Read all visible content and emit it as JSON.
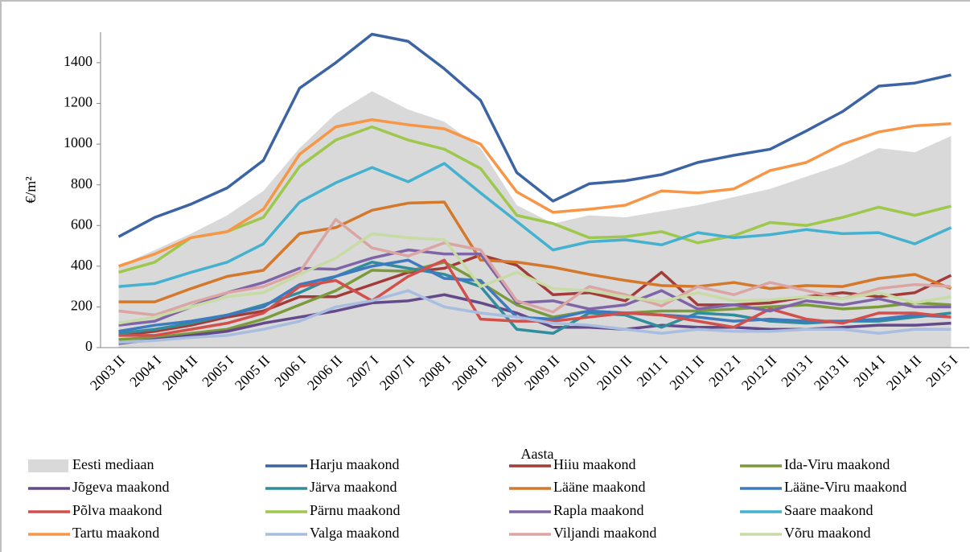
{
  "chart_data": {
    "type": "line",
    "ylabel": "€/m²",
    "xlabel": "Aasta",
    "categories": [
      "2003 II",
      "2004 I",
      "2004 II",
      "2005 I",
      "2005 II",
      "2006 I",
      "2006 II",
      "2007 I",
      "2007 II",
      "2008 I",
      "2008 II",
      "2009 I",
      "2009 II",
      "2010 I",
      "2010 II",
      "2011 I",
      "2011 II",
      "2012 I",
      "2012 II",
      "2013 I",
      "2013 II",
      "2014 I",
      "2014 II",
      "2015 I"
    ],
    "ylim": [
      0,
      1550
    ],
    "yticks": [
      0,
      200,
      400,
      600,
      800,
      1000,
      1200,
      1400
    ],
    "series": [
      {
        "name": "Eesti mediaan",
        "color": "#d9d9d9",
        "area": true,
        "values": [
          400,
          480,
          560,
          650,
          770,
          980,
          1150,
          1260,
          1170,
          1110,
          980,
          700,
          610,
          650,
          640,
          670,
          700,
          740,
          780,
          840,
          900,
          980,
          960,
          1040
        ]
      },
      {
        "name": "Harju maakond",
        "color": "#3c64a4",
        "values": [
          545,
          640,
          705,
          785,
          920,
          1275,
          1400,
          1540,
          1505,
          1370,
          1215,
          860,
          720,
          805,
          820,
          850,
          910,
          945,
          975,
          1065,
          1160,
          1285,
          1300,
          1340
        ]
      },
      {
        "name": "Hiiu maakond",
        "color": "#a33c39",
        "values": [
          60,
          80,
          110,
          150,
          180,
          250,
          250,
          310,
          370,
          390,
          455,
          405,
          260,
          270,
          230,
          370,
          210,
          210,
          220,
          250,
          270,
          250,
          270,
          355
        ]
      },
      {
        "name": "Ida-Viru maakond",
        "color": "#7b9a3c",
        "values": [
          40,
          50,
          70,
          90,
          140,
          210,
          280,
          380,
          375,
          420,
          320,
          210,
          150,
          180,
          170,
          180,
          180,
          190,
          200,
          210,
          190,
          200,
          220,
          210
        ]
      },
      {
        "name": "Jõgeva maakond",
        "color": "#644a8a",
        "values": [
          20,
          40,
          60,
          80,
          120,
          150,
          180,
          220,
          230,
          260,
          220,
          170,
          100,
          100,
          90,
          110,
          100,
          100,
          90,
          90,
          100,
          110,
          110,
          120
        ]
      },
      {
        "name": "Järva maakond",
        "color": "#2f8d9c",
        "values": [
          70,
          90,
          120,
          160,
          210,
          270,
          350,
          420,
          390,
          360,
          300,
          90,
          70,
          170,
          160,
          100,
          170,
          160,
          130,
          120,
          130,
          130,
          150,
          170
        ]
      },
      {
        "name": "Lääne maakond",
        "color": "#d4782c",
        "values": [
          225,
          225,
          290,
          350,
          380,
          560,
          590,
          675,
          710,
          715,
          430,
          420,
          395,
          360,
          330,
          305,
          300,
          320,
          290,
          305,
          300,
          340,
          360,
          290
        ]
      },
      {
        "name": "Lääne-Viru maakond",
        "color": "#3e7ac0",
        "values": [
          80,
          110,
          130,
          160,
          200,
          310,
          350,
          400,
          430,
          340,
          330,
          150,
          140,
          180,
          170,
          160,
          150,
          130,
          140,
          130,
          130,
          140,
          160,
          150
        ]
      },
      {
        "name": "Põlva maakond",
        "color": "#d24f4b",
        "values": [
          60,
          60,
          90,
          120,
          170,
          300,
          330,
          230,
          350,
          430,
          140,
          130,
          130,
          150,
          170,
          160,
          130,
          100,
          190,
          140,
          120,
          170,
          170,
          150
        ]
      },
      {
        "name": "Pärnu maakond",
        "color": "#9dc84b",
        "values": [
          370,
          420,
          540,
          570,
          640,
          890,
          1020,
          1085,
          1020,
          975,
          880,
          650,
          610,
          540,
          545,
          570,
          515,
          550,
          615,
          600,
          640,
          690,
          650,
          695
        ]
      },
      {
        "name": "Rapla maakond",
        "color": "#8064a8",
        "values": [
          110,
          130,
          200,
          270,
          320,
          390,
          385,
          440,
          480,
          460,
          460,
          220,
          230,
          190,
          210,
          280,
          190,
          210,
          180,
          230,
          210,
          240,
          200,
          200
        ]
      },
      {
        "name": "Saare maakond",
        "color": "#43b1cf",
        "values": [
          300,
          315,
          370,
          420,
          510,
          715,
          810,
          885,
          815,
          905,
          760,
          620,
          480,
          520,
          530,
          505,
          565,
          540,
          555,
          580,
          560,
          565,
          510,
          590
        ]
      },
      {
        "name": "Tartu maakond",
        "color": "#f79646",
        "values": [
          400,
          460,
          540,
          570,
          680,
          950,
          1085,
          1120,
          1095,
          1075,
          1000,
          765,
          665,
          680,
          700,
          770,
          760,
          780,
          870,
          910,
          1000,
          1060,
          1090,
          1100
        ]
      },
      {
        "name": "Valga maakond",
        "color": "#a8bde0",
        "values": [
          25,
          35,
          50,
          60,
          90,
          130,
          200,
          230,
          280,
          200,
          170,
          150,
          120,
          110,
          90,
          70,
          90,
          80,
          80,
          90,
          90,
          70,
          90,
          90
        ]
      },
      {
        "name": "Viljandi maakond",
        "color": "#dba5a4",
        "values": [
          180,
          160,
          220,
          270,
          300,
          370,
          630,
          490,
          450,
          515,
          480,
          230,
          175,
          300,
          260,
          205,
          300,
          260,
          320,
          280,
          240,
          290,
          310,
          300
        ]
      },
      {
        "name": "Võru maakond",
        "color": "#c8dba4",
        "values": [
          120,
          150,
          200,
          250,
          270,
          360,
          440,
          560,
          540,
          530,
          300,
          370,
          290,
          280,
          250,
          225,
          270,
          230,
          235,
          250,
          240,
          270,
          220,
          250
        ]
      }
    ]
  }
}
